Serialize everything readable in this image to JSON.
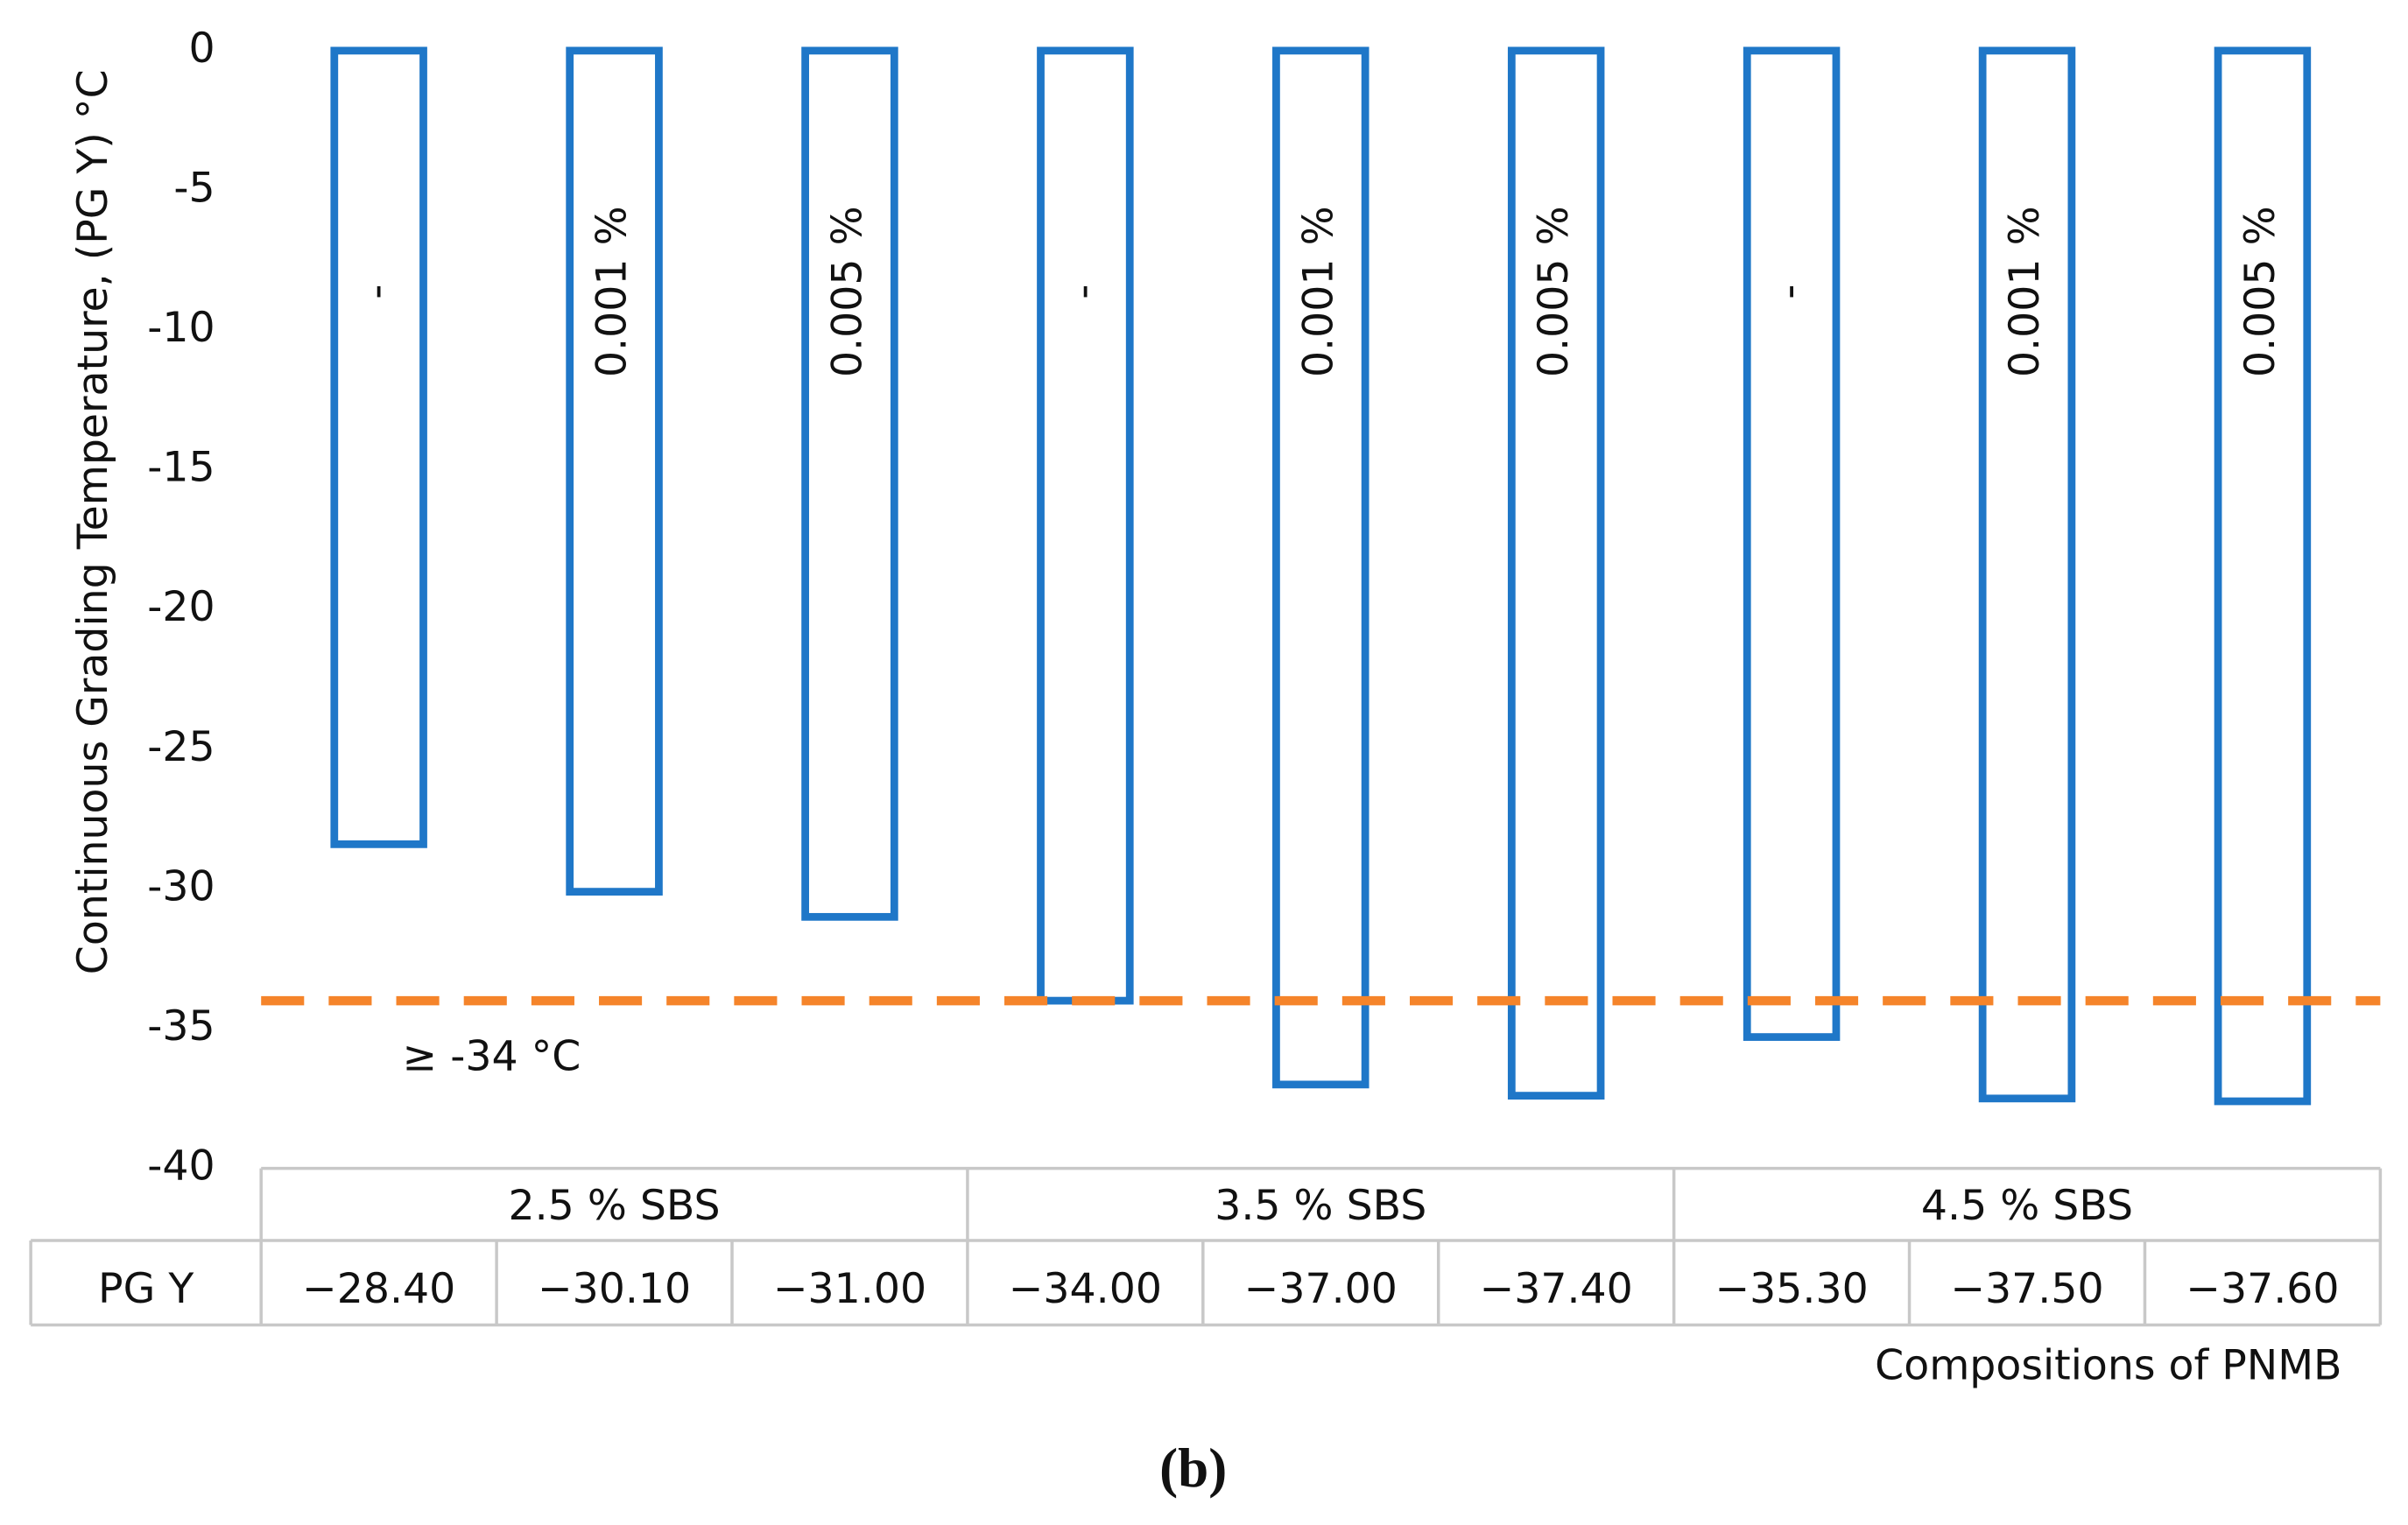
{
  "chart_data": {
    "type": "bar",
    "y_label": "Continuous Grading Temperature, (PG Y) °C",
    "x_label": "Compositions of PNMB",
    "caption": "(b)",
    "categories": [
      "-",
      "0.001 %",
      "0.005 %",
      "-",
      "0.001 %",
      "0.005 %",
      "-",
      "0.001 %",
      "0.005 %"
    ],
    "groups": [
      "2.5 % SBS",
      "3.5 % SBS",
      "4.5 % SBS"
    ],
    "row_label": "PG Y",
    "values": [
      -28.4,
      -30.1,
      -31.0,
      -34.0,
      -37.0,
      -37.4,
      -35.3,
      -37.5,
      -37.6
    ],
    "value_labels": [
      "−28.40",
      "−30.10",
      "−31.00",
      "−34.00",
      "−37.00",
      "−37.40",
      "−35.30",
      "−37.50",
      "−37.60"
    ],
    "color": "#1f77c8",
    "reference_line": {
      "value": -34,
      "label": "≥ -34 °C",
      "color": "#f5842a"
    },
    "ylim": [
      -40,
      0
    ],
    "yticks": [
      0,
      -5,
      -10,
      -15,
      -20,
      -25,
      -30,
      -35,
      -40
    ]
  }
}
